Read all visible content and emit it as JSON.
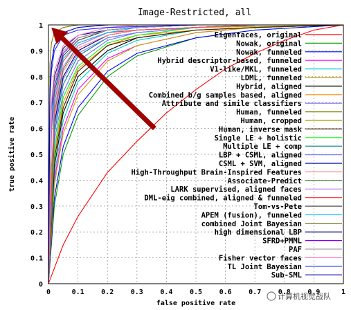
{
  "chart_data": {
    "type": "line",
    "title": "Image-Restricted, all",
    "xlabel": "false positive rate",
    "ylabel": "true positive rate",
    "xlim": [
      0,
      1
    ],
    "ylim": [
      0,
      1
    ],
    "x_ticks": [
      "0",
      "0.1",
      "0.2",
      "0.3",
      "0.4",
      "0.5",
      "0.6",
      "0.7",
      "0.8",
      "0.9",
      "1"
    ],
    "y_ticks": [
      "0",
      "0.1",
      "0.2",
      "0.3",
      "0.4",
      "0.5",
      "0.6",
      "0.7",
      "0.8",
      "0.9",
      "1"
    ],
    "grid": true,
    "legend_position": "right, inside plot",
    "series": [
      {
        "name": "Eigenfaces, original",
        "color": "#ff0000",
        "x": [
          0,
          0.05,
          0.1,
          0.2,
          0.3,
          0.4,
          0.5,
          0.6,
          0.7,
          0.8,
          0.9,
          1
        ],
        "y": [
          0,
          0.15,
          0.26,
          0.43,
          0.55,
          0.66,
          0.75,
          0.83,
          0.89,
          0.94,
          0.98,
          1
        ]
      },
      {
        "name": "Nowak, original",
        "color": "#00a000",
        "x": [
          0,
          0.02,
          0.05,
          0.1,
          0.2,
          0.3,
          0.5,
          0.7,
          1
        ],
        "y": [
          0,
          0.3,
          0.5,
          0.65,
          0.8,
          0.88,
          0.95,
          0.98,
          1
        ]
      },
      {
        "name": "Nowak, funneled",
        "color": "#0000ff",
        "x": [
          0,
          0.02,
          0.05,
          0.1,
          0.2,
          0.3,
          0.5,
          0.7,
          1
        ],
        "y": [
          0,
          0.33,
          0.53,
          0.68,
          0.82,
          0.89,
          0.95,
          0.98,
          1
        ]
      },
      {
        "name": "Hybrid descriptor-based, funneled",
        "color": "#ff00ff",
        "x": [
          0,
          0.02,
          0.05,
          0.1,
          0.2,
          0.3,
          0.5,
          0.7,
          1
        ],
        "y": [
          0,
          0.4,
          0.6,
          0.75,
          0.87,
          0.92,
          0.97,
          0.99,
          1
        ]
      },
      {
        "name": "V1-like/MKL, funneled",
        "color": "#00cccc",
        "x": [
          0,
          0.02,
          0.05,
          0.1,
          0.2,
          0.3,
          0.5,
          0.7,
          1
        ],
        "y": [
          0,
          0.42,
          0.63,
          0.78,
          0.89,
          0.94,
          0.98,
          0.99,
          1
        ]
      },
      {
        "name": "LDML, funneled",
        "color": "#c8a000",
        "x": [
          0,
          0.02,
          0.05,
          0.1,
          0.2,
          0.3,
          0.5,
          0.7,
          1
        ],
        "y": [
          0,
          0.38,
          0.58,
          0.73,
          0.86,
          0.92,
          0.97,
          0.99,
          1
        ]
      },
      {
        "name": "Hybrid, aligned",
        "color": "#000000",
        "x": [
          0,
          0.02,
          0.05,
          0.1,
          0.2,
          0.3,
          0.5,
          0.7,
          1
        ],
        "y": [
          0,
          0.45,
          0.66,
          0.8,
          0.9,
          0.95,
          0.98,
          0.99,
          1
        ]
      },
      {
        "name": "Combined b/g samples based, aligned",
        "color": "#ff8c00",
        "x": [
          0,
          0.02,
          0.05,
          0.1,
          0.2,
          0.3,
          0.5,
          0.7,
          1
        ],
        "y": [
          0,
          0.5,
          0.7,
          0.83,
          0.92,
          0.96,
          0.98,
          0.99,
          1
        ]
      },
      {
        "name": "Attribute and simile classifiers",
        "color": "#7070ff",
        "x": [
          0,
          0.02,
          0.05,
          0.1,
          0.2,
          0.3,
          0.5,
          0.7,
          1
        ],
        "y": [
          0,
          0.55,
          0.74,
          0.86,
          0.94,
          0.97,
          0.99,
          1,
          1
        ]
      },
      {
        "name": "Human, funneled",
        "color": "#808000",
        "x": [
          0,
          0.005,
          0.01,
          0.02,
          0.05,
          0.1,
          0.3,
          1
        ],
        "y": [
          0,
          0.85,
          0.93,
          0.97,
          0.99,
          1,
          1,
          1
        ]
      },
      {
        "name": "Human, cropped",
        "color": "#a0a000",
        "x": [
          0,
          0.01,
          0.02,
          0.05,
          0.1,
          0.2,
          0.3,
          0.5,
          1
        ],
        "y": [
          0,
          0.45,
          0.62,
          0.8,
          0.9,
          0.96,
          0.98,
          0.99,
          1
        ]
      },
      {
        "name": "Human, inverse mask",
        "color": "#402000",
        "x": [
          0,
          0.02,
          0.05,
          0.1,
          0.2,
          0.3,
          0.5,
          0.7,
          1
        ],
        "y": [
          0,
          0.48,
          0.68,
          0.82,
          0.92,
          0.95,
          0.98,
          0.99,
          1
        ]
      },
      {
        "name": "Single LE + holistic",
        "color": "#00ff00",
        "x": [
          0,
          0.02,
          0.05,
          0.1,
          0.2,
          0.3,
          0.5,
          0.7,
          1
        ],
        "y": [
          0,
          0.52,
          0.72,
          0.84,
          0.93,
          0.96,
          0.99,
          1,
          1
        ]
      },
      {
        "name": "Multiple LE + comp",
        "color": "#008080",
        "x": [
          0,
          0.02,
          0.05,
          0.1,
          0.2,
          0.3,
          0.5,
          0.7,
          1
        ],
        "y": [
          0,
          0.58,
          0.77,
          0.88,
          0.95,
          0.97,
          0.99,
          1,
          1
        ]
      },
      {
        "name": "LBP + CSML, aligned",
        "color": "#8080ff",
        "x": [
          0,
          0.02,
          0.05,
          0.1,
          0.2,
          0.3,
          0.5,
          0.7,
          1
        ],
        "y": [
          0,
          0.6,
          0.79,
          0.89,
          0.95,
          0.97,
          0.99,
          1,
          1
        ]
      },
      {
        "name": "CSML + SVM, aligned",
        "color": "#0000a0",
        "x": [
          0,
          0.02,
          0.05,
          0.1,
          0.2,
          0.3,
          0.5,
          0.7,
          1
        ],
        "y": [
          0,
          0.62,
          0.8,
          0.9,
          0.96,
          0.98,
          0.99,
          1,
          1
        ]
      },
      {
        "name": "High-Throughput Brain-Inspired Features",
        "color": "#ff8080",
        "x": [
          0,
          0.02,
          0.05,
          0.1,
          0.2,
          0.3,
          0.5,
          0.7,
          1
        ],
        "y": [
          0,
          0.64,
          0.82,
          0.91,
          0.96,
          0.98,
          0.99,
          1,
          1
        ]
      },
      {
        "name": "Associate-Predict",
        "color": "#408040",
        "x": [
          0,
          0.02,
          0.05,
          0.1,
          0.2,
          0.3,
          0.5,
          0.7,
          1
        ],
        "y": [
          0,
          0.66,
          0.83,
          0.92,
          0.97,
          0.98,
          0.99,
          1,
          1
        ]
      },
      {
        "name": "LARK supervised, aligned faces",
        "color": "#c080ff",
        "x": [
          0,
          0.02,
          0.05,
          0.1,
          0.2,
          0.3,
          0.5,
          0.7,
          1
        ],
        "y": [
          0,
          0.68,
          0.84,
          0.92,
          0.97,
          0.98,
          0.99,
          1,
          1
        ]
      },
      {
        "name": "DML-eig combined, aligned & funneled",
        "color": "#ff4040",
        "x": [
          0,
          0.02,
          0.05,
          0.1,
          0.2,
          0.3,
          0.5,
          0.7,
          1
        ],
        "y": [
          0,
          0.7,
          0.86,
          0.93,
          0.97,
          0.98,
          0.99,
          1,
          1
        ]
      },
      {
        "name": "Tom-vs-Pete",
        "color": "#404040",
        "x": [
          0,
          0.01,
          0.02,
          0.05,
          0.1,
          0.2,
          0.3,
          0.5,
          1
        ],
        "y": [
          0,
          0.6,
          0.74,
          0.88,
          0.94,
          0.98,
          0.99,
          1,
          1
        ]
      },
      {
        "name": "APEM (fusion), funneled",
        "color": "#00c0ff",
        "x": [
          0,
          0.01,
          0.02,
          0.05,
          0.1,
          0.2,
          0.3,
          0.5,
          1
        ],
        "y": [
          0,
          0.58,
          0.72,
          0.87,
          0.93,
          0.97,
          0.99,
          1,
          1
        ]
      },
      {
        "name": "combined Joint Bayesian",
        "color": "#606000",
        "x": [
          0,
          0.01,
          0.02,
          0.05,
          0.1,
          0.2,
          0.3,
          0.5,
          1
        ],
        "y": [
          0,
          0.65,
          0.78,
          0.9,
          0.95,
          0.98,
          0.99,
          1,
          1
        ]
      },
      {
        "name": "high dimensional LBP",
        "color": "#000080",
        "x": [
          0,
          0.01,
          0.02,
          0.05,
          0.1,
          0.2,
          0.3,
          0.5,
          1
        ],
        "y": [
          0,
          0.68,
          0.8,
          0.91,
          0.96,
          0.98,
          0.99,
          1,
          1
        ]
      },
      {
        "name": "SFRD+PMML",
        "color": "#8000ff",
        "x": [
          0,
          0.01,
          0.02,
          0.05,
          0.1,
          0.2,
          0.3,
          0.5,
          1
        ],
        "y": [
          0,
          0.62,
          0.76,
          0.89,
          0.95,
          0.98,
          0.99,
          1,
          1
        ]
      },
      {
        "name": "PAF",
        "color": "#a0a0a0",
        "x": [
          0,
          0.01,
          0.02,
          0.05,
          0.1,
          0.2,
          0.3,
          0.5,
          1
        ],
        "y": [
          0,
          0.64,
          0.78,
          0.9,
          0.95,
          0.98,
          0.99,
          1,
          1
        ]
      },
      {
        "name": "Fisher vector faces",
        "color": "#ff80c0",
        "x": [
          0,
          0.01,
          0.02,
          0.05,
          0.1,
          0.2,
          0.3,
          0.5,
          1
        ],
        "y": [
          0,
          0.7,
          0.82,
          0.92,
          0.96,
          0.99,
          1,
          1,
          1
        ]
      },
      {
        "name": "TL Joint Bayesian",
        "color": "#2020ff",
        "x": [
          0,
          0.005,
          0.01,
          0.02,
          0.05,
          0.1,
          0.2,
          0.5,
          1
        ],
        "y": [
          0,
          0.72,
          0.82,
          0.9,
          0.96,
          0.98,
          0.99,
          1,
          1
        ]
      },
      {
        "name": "Sub-SML",
        "color": "#0000c0",
        "x": [
          0,
          0.005,
          0.01,
          0.02,
          0.05,
          0.1,
          0.2,
          0.5,
          1
        ],
        "y": [
          0,
          0.75,
          0.85,
          0.92,
          0.97,
          0.99,
          1,
          1,
          1
        ]
      }
    ],
    "annotations": [
      {
        "type": "arrow",
        "color": "#a00000",
        "from": [
          0.36,
          0.6
        ],
        "to": [
          0.01,
          0.99
        ]
      }
    ]
  },
  "watermark": "计算机视觉战队"
}
